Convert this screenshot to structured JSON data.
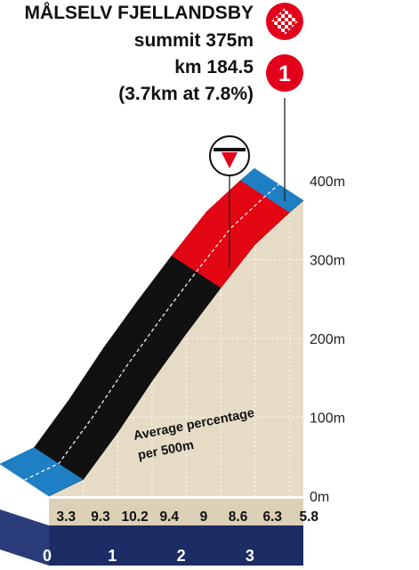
{
  "header": {
    "climb_name": "MÅLSELV FJELLANDSBY",
    "summit": "summit  375m",
    "km": "km 184.5",
    "stats": "(3.7km at 7.8%)",
    "category": "1"
  },
  "avg_note": {
    "line1": "Average percentage",
    "line2": "per 500m"
  },
  "colors": {
    "cat_red": "#e3001b",
    "steep": "#e30613",
    "very_steep": "#111111",
    "gentle": "#1f7fc4",
    "wall": "#e6dcc6",
    "base": "#1c2c64",
    "grid": "#ffffff"
  },
  "icons": [
    "chequered-flag-icon",
    "category-1-icon",
    "kom-sprint-icon"
  ],
  "chart_data": {
    "type": "area",
    "title": "",
    "xlabel": "",
    "ylabel": "",
    "x_ticks": [
      "0",
      "1",
      "2",
      "3"
    ],
    "y_ticks": [
      "0m",
      "100m",
      "200m",
      "300m",
      "400m"
    ],
    "ylim": [
      0,
      400
    ],
    "xlim": [
      0,
      3.7
    ],
    "segments": [
      {
        "km_start": 0.0,
        "km_end": 0.5,
        "gradient": 3.3,
        "label": "3.3",
        "color": "#1f7fc4"
      },
      {
        "km_start": 0.5,
        "km_end": 1.0,
        "gradient": 9.3,
        "label": "9.3",
        "color": "#111111"
      },
      {
        "km_start": 1.0,
        "km_end": 1.5,
        "gradient": 10.2,
        "label": "10.2",
        "color": "#111111"
      },
      {
        "km_start": 1.5,
        "km_end": 2.0,
        "gradient": 9.4,
        "label": "9.4",
        "color": "#111111"
      },
      {
        "km_start": 2.0,
        "km_end": 2.5,
        "gradient": 9.0,
        "label": "9",
        "color": "#111111"
      },
      {
        "km_start": 2.5,
        "km_end": 3.0,
        "gradient": 8.6,
        "label": "8.6",
        "color": "#e30613"
      },
      {
        "km_start": 3.0,
        "km_end": 3.5,
        "gradient": 6.3,
        "label": "6.3",
        "color": "#e30613"
      },
      {
        "km_start": 3.5,
        "km_end": 3.7,
        "gradient": 5.8,
        "label": "5.8",
        "color": "#1f7fc4"
      }
    ],
    "grid": true,
    "summit_elevation": 375
  }
}
